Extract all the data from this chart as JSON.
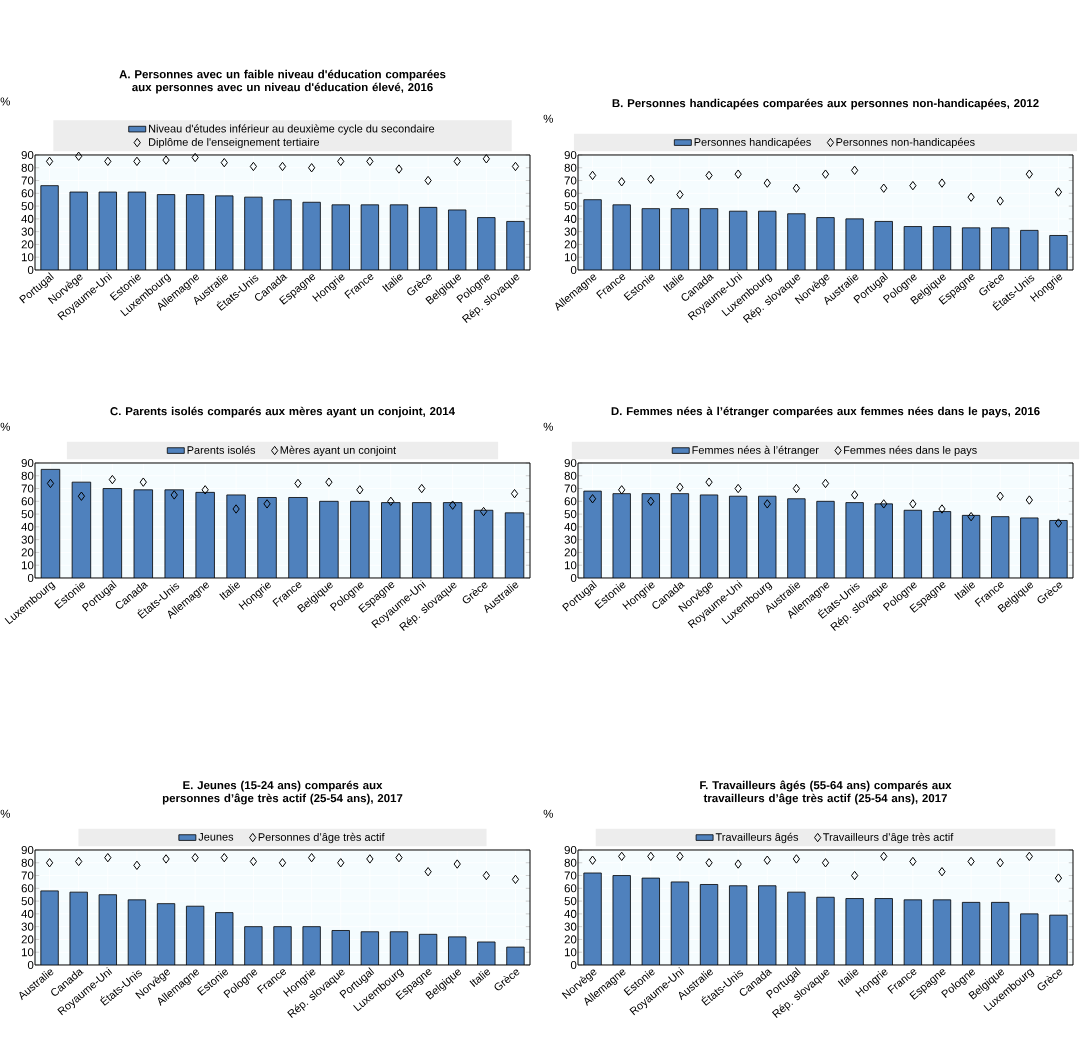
{
  "chart_data": [
    {
      "type": "bar",
      "title": "A. Personnes avec un faible niveau d'éducation comparées aux personnes avec un niveau d'éducation élevé, 2016",
      "ylabel": "%",
      "categories": [
        "Portugal",
        "Norvège",
        "Royaume-Uni",
        "Estonie",
        "Luxembourg",
        "Allemagne",
        "Australie",
        "États-Unis",
        "Canada",
        "Espagne",
        "Hongrie",
        "France",
        "Italie",
        "Grèce",
        "Belgique",
        "Pologne",
        "Rép. slovaque"
      ],
      "series": [
        {
          "name": "Niveau d'études inférieur au deuxième cycle du secondaire",
          "color": "#4f81bd",
          "values": [
            66,
            61,
            61,
            61,
            59,
            59,
            58,
            57,
            55,
            53,
            51,
            51,
            51,
            49,
            47,
            41,
            38
          ]
        },
        {
          "name": "Diplôme de l'enseignement tertiaire",
          "type": "scatter",
          "color": "#000000",
          "values": [
            85,
            89,
            85,
            85,
            86,
            88,
            84,
            81,
            81,
            80,
            85,
            85,
            79,
            70,
            85,
            87,
            81
          ]
        }
      ],
      "ylim": [
        0,
        90
      ],
      "yticks": [
        0,
        10,
        20,
        30,
        40,
        50,
        60,
        70,
        80,
        90
      ],
      "grid": true,
      "legend": "top",
      "marker": "diamond"
    },
    {
      "type": "bar",
      "title": "B. Personnes handicapées comparées aux personnes non-handicapées, 2012",
      "ylabel": "%",
      "categories": [
        "Allemagne",
        "France",
        "Estonie",
        "Italie",
        "Canada",
        "Royaume-Uni",
        "Luxembourg",
        "Rép. slovaque",
        "Norvège",
        "Australie",
        "Portugal",
        "Pologne",
        "Belgique",
        "Espagne",
        "Grèce",
        "États-Unis",
        "Hongrie"
      ],
      "series": [
        {
          "name": "Personnes handicapées",
          "color": "#4f81bd",
          "values": [
            55,
            51,
            48,
            48,
            48,
            46,
            46,
            44,
            41,
            40,
            38,
            34,
            34,
            33,
            33,
            31,
            27
          ]
        },
        {
          "name": "Personnes non-handicapées",
          "type": "scatter",
          "color": "#000000",
          "values": [
            74,
            69,
            71,
            59,
            74,
            75,
            68,
            64,
            75,
            78,
            64,
            66,
            68,
            57,
            54,
            75,
            61
          ]
        }
      ],
      "ylim": [
        0,
        90
      ],
      "yticks": [
        0,
        10,
        20,
        30,
        40,
        50,
        60,
        70,
        80,
        90
      ],
      "grid": true,
      "legend": "top",
      "marker": "diamond"
    },
    {
      "type": "bar",
      "title": "C. Parents isolés comparés aux mères ayant un conjoint, 2014",
      "ylabel": "%",
      "categories": [
        "Luxembourg",
        "Estonie",
        "Portugal",
        "Canada",
        "États-Unis",
        "Allemagne",
        "Italie",
        "Hongrie",
        "France",
        "Belgique",
        "Pologne",
        "Espagne",
        "Royaume-Uni",
        "Rép. slovaque",
        "Grèce",
        "Australie"
      ],
      "series": [
        {
          "name": "Parents isolés",
          "color": "#4f81bd",
          "values": [
            85,
            75,
            70,
            69,
            69,
            67,
            65,
            63,
            63,
            60,
            60,
            59,
            59,
            59,
            53,
            51
          ]
        },
        {
          "name": "Mères ayant un conjoint",
          "type": "scatter",
          "color": "#000000",
          "values": [
            74,
            64,
            77,
            75,
            65,
            69,
            54,
            58,
            74,
            75,
            69,
            60,
            70,
            57,
            52,
            66
          ]
        }
      ],
      "ylim": [
        0,
        90
      ],
      "yticks": [
        0,
        10,
        20,
        30,
        40,
        50,
        60,
        70,
        80,
        90
      ],
      "grid": true,
      "legend": "top",
      "marker": "diamond"
    },
    {
      "type": "bar",
      "title": "D. Femmes nées à l’étranger comparées aux femmes nées dans le pays, 2016",
      "ylabel": "%",
      "categories": [
        "Portugal",
        "Estonie",
        "Hongrie",
        "Canada",
        "Norvège",
        "Royaume-Uni",
        "Luxembourg",
        "Australie",
        "Allemagne",
        "États-Unis",
        "Rép. slovaque",
        "Pologne",
        "Espagne",
        "Italie",
        "France",
        "Belgique",
        "Grèce"
      ],
      "series": [
        {
          "name": "Femmes nées à l’étranger",
          "color": "#4f81bd",
          "values": [
            68,
            66,
            66,
            66,
            65,
            64,
            64,
            62,
            60,
            59,
            58,
            53,
            52,
            49,
            48,
            47,
            45
          ]
        },
        {
          "name": "Femmes nées dans le pays",
          "type": "scatter",
          "color": "#000000",
          "values": [
            62,
            69,
            60,
            71,
            75,
            70,
            58,
            70,
            74,
            65,
            58,
            58,
            54,
            48,
            64,
            61,
            43
          ]
        }
      ],
      "ylim": [
        0,
        90
      ],
      "yticks": [
        0,
        10,
        20,
        30,
        40,
        50,
        60,
        70,
        80,
        90
      ],
      "grid": true,
      "legend": "top",
      "marker": "diamond"
    },
    {
      "type": "bar",
      "title": "E. Jeunes (15-24 ans) comparés aux personnes d’âge très actif (25-54 ans), 2017",
      "ylabel": "%",
      "categories": [
        "Australie",
        "Canada",
        "Royaume-Uni",
        "États-Unis",
        "Norvège",
        "Allemagne",
        "Estonie",
        "Pologne",
        "France",
        "Hongrie",
        "Rép. slovaque",
        "Portugal",
        "Luxembourg",
        "Espagne",
        "Belgique",
        "Italie",
        "Grèce"
      ],
      "series": [
        {
          "name": "Jeunes",
          "color": "#4f81bd",
          "values": [
            58,
            57,
            55,
            51,
            48,
            46,
            41,
            30,
            30,
            30,
            27,
            26,
            26,
            24,
            22,
            18,
            14
          ]
        },
        {
          "name": "Personnes d’âge très actif",
          "type": "scatter",
          "color": "#000000",
          "values": [
            80,
            81,
            84,
            78,
            83,
            84,
            84,
            81,
            80,
            84,
            80,
            83,
            84,
            73,
            79,
            70,
            67
          ]
        }
      ],
      "ylim": [
        0,
        90
      ],
      "yticks": [
        0,
        10,
        20,
        30,
        40,
        50,
        60,
        70,
        80,
        90
      ],
      "grid": true,
      "legend": "top",
      "marker": "diamond"
    },
    {
      "type": "bar",
      "title": "F. Travailleurs âgés (55-64 ans) comparés aux travailleurs d’âge très actif (25-54 ans), 2017",
      "ylabel": "%",
      "categories": [
        "Norvège",
        "Allemagne",
        "Estonie",
        "Royaume-Uni",
        "Australie",
        "États-Unis",
        "Canada",
        "Portugal",
        "Rép. slovaque",
        "Italie",
        "Hongrie",
        "France",
        "Espagne",
        "Pologne",
        "Belgique",
        "Luxembourg",
        "Grèce"
      ],
      "series": [
        {
          "name": "Travailleurs âgés",
          "color": "#4f81bd",
          "values": [
            72,
            70,
            68,
            65,
            63,
            62,
            62,
            57,
            53,
            52,
            52,
            51,
            51,
            49,
            49,
            40,
            39
          ]
        },
        {
          "name": "Travailleurs d’âge très actif",
          "type": "scatter",
          "color": "#000000",
          "values": [
            82,
            85,
            85,
            85,
            80,
            79,
            82,
            83,
            80,
            70,
            85,
            81,
            73,
            81,
            80,
            85,
            68
          ]
        }
      ],
      "ylim": [
        0,
        90
      ],
      "yticks": [
        0,
        10,
        20,
        30,
        40,
        50,
        60,
        70,
        80,
        90
      ],
      "grid": true,
      "legend": "top",
      "marker": "diamond"
    }
  ]
}
